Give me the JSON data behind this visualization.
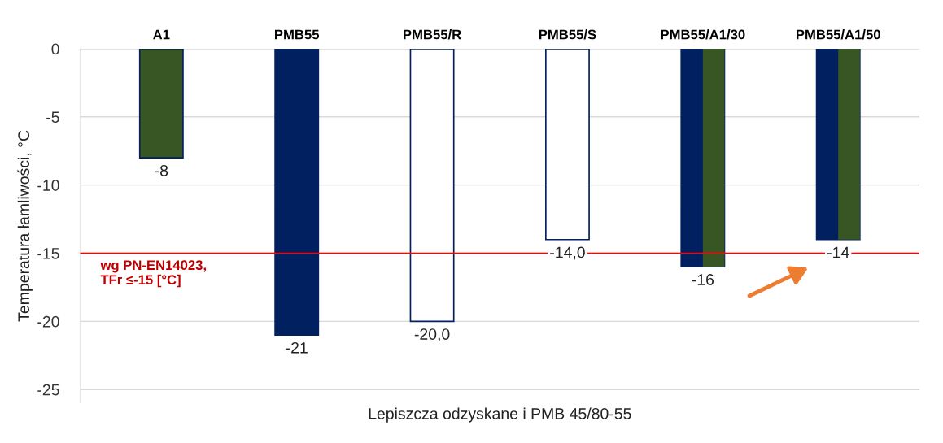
{
  "chart_data": {
    "type": "bar",
    "categories": [
      "A1",
      "PMB55",
      "PMB55/R",
      "PMB55/S",
      "PMB55/A1/30",
      "PMB55/A1/50"
    ],
    "series": [
      {
        "colors": [
          "#375623",
          "#002060",
          "#ffffff",
          "#ffffff",
          "#002060",
          "#002060"
        ],
        "values": [
          -8,
          -21,
          -20,
          -14,
          -16,
          -14
        ],
        "value_labels": [
          "-8",
          "-21",
          "-20,0",
          "-14,0",
          "-16",
          "-14"
        ]
      },
      {
        "color": "#375623",
        "values": [
          null,
          null,
          null,
          null,
          -16,
          -14
        ]
      }
    ],
    "xlabel": "Lepiszcza odzyskane i PMB 45/80-55",
    "ylabel": "Temperatura łamliwości, °C",
    "ylim": [
      -26,
      0
    ],
    "yticks": [
      0,
      -5,
      -10,
      -15,
      -20,
      -25
    ],
    "ref_lines": [
      {
        "axis": "y",
        "value": -15,
        "label": "wg PN-EN14023,\nTFr ≤-15 [°C]",
        "color": "#ff0000"
      }
    ],
    "grid": "y"
  }
}
